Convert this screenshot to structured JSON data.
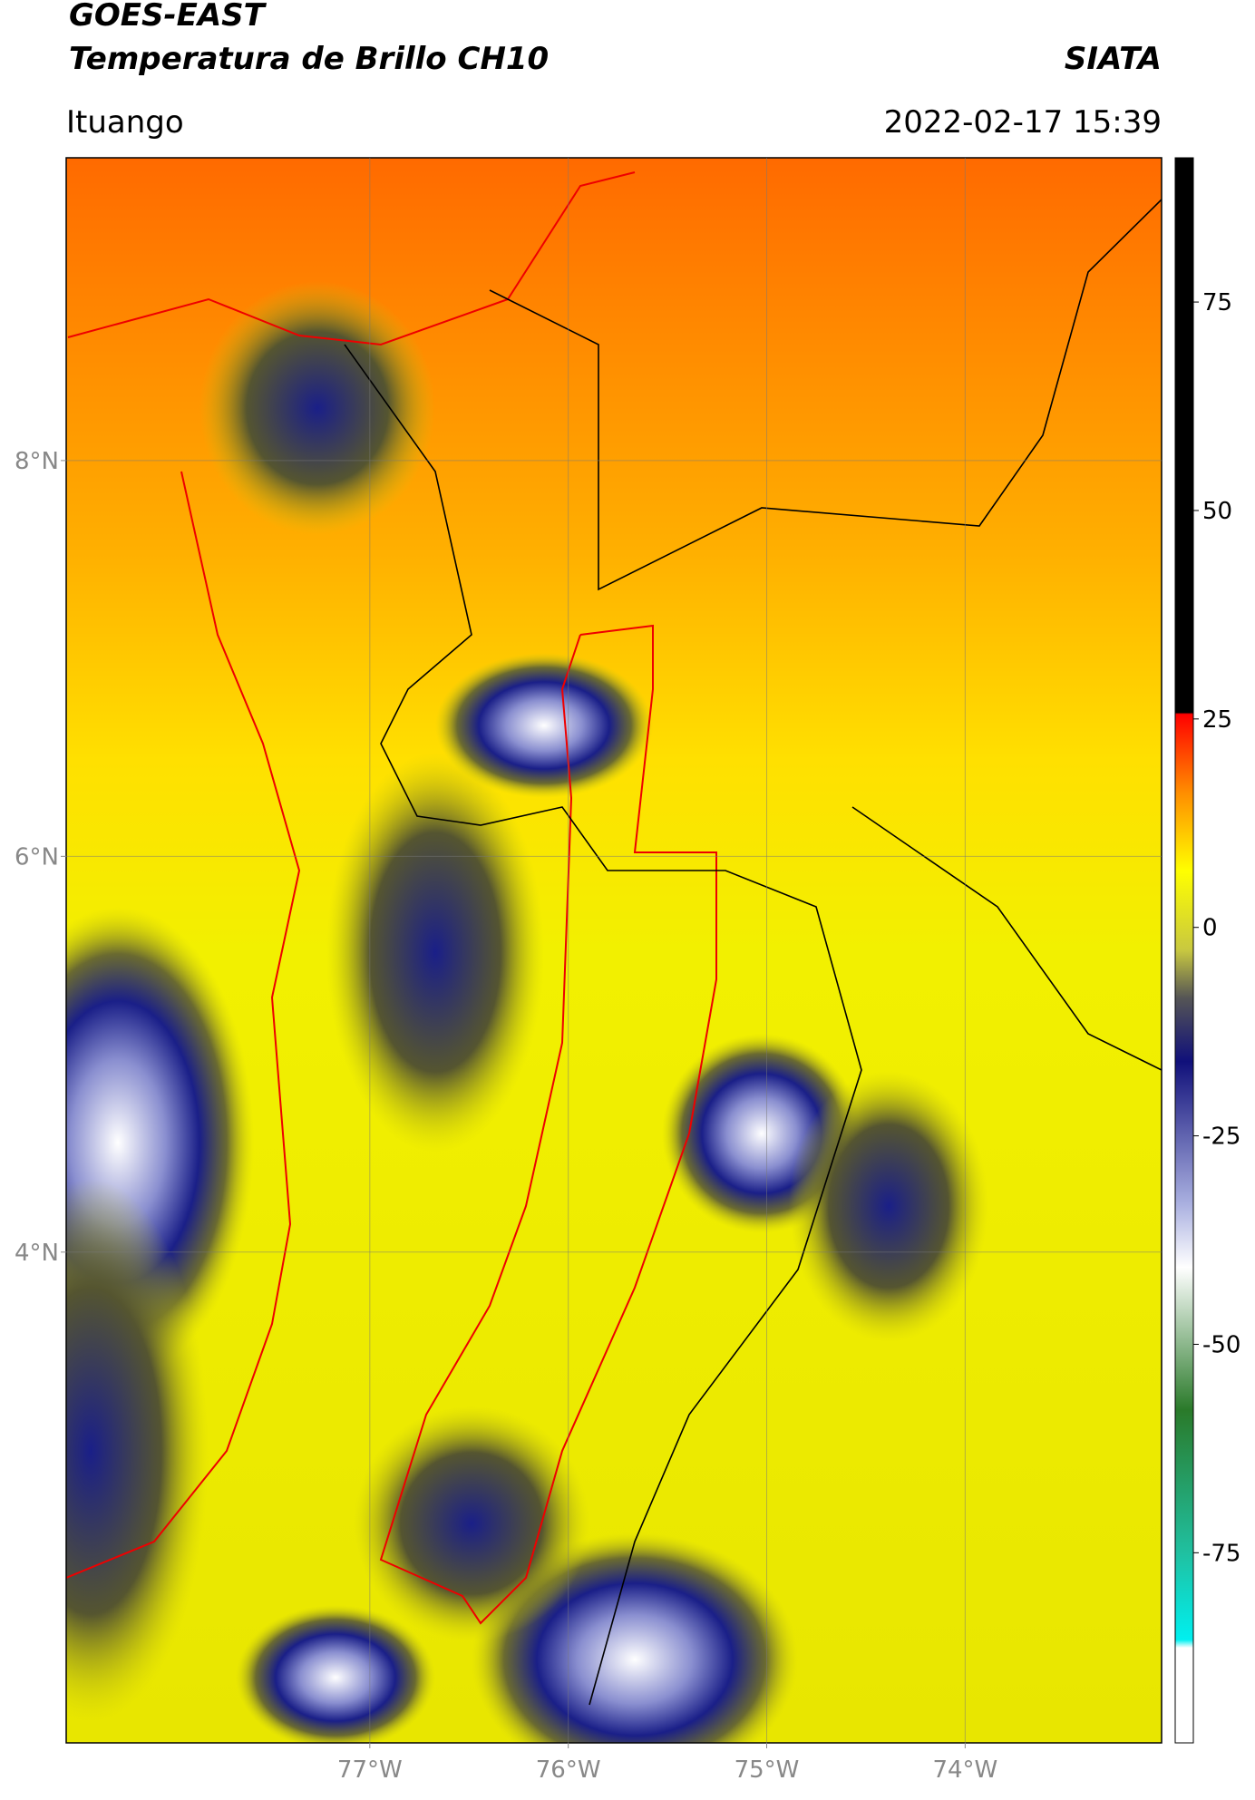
{
  "header": {
    "title": "GOES-EAST",
    "subtitle": "Temperatura de Brillo CH10",
    "source": "SIATA",
    "location": "Ituango",
    "datetime": "2022-02-17 15:39"
  },
  "map": {
    "xlim": [
      -78.53,
      -73.01
    ],
    "ylim": [
      1.52,
      9.53
    ],
    "xticks": [
      {
        "value": -77,
        "label": "77°W"
      },
      {
        "value": -76,
        "label": "76°W"
      },
      {
        "value": -75,
        "label": "75°W"
      },
      {
        "value": -74,
        "label": "74°W"
      }
    ],
    "yticks": [
      {
        "value": 8,
        "label": "8°N"
      },
      {
        "value": 6,
        "label": "6°N"
      },
      {
        "value": 4,
        "label": "4°N"
      }
    ],
    "grid": true
  },
  "colorbar": {
    "lim": [
      -97.8,
      92.3
    ],
    "ticks": [
      75,
      50,
      25,
      0,
      -25,
      -50,
      -75
    ]
  }
}
